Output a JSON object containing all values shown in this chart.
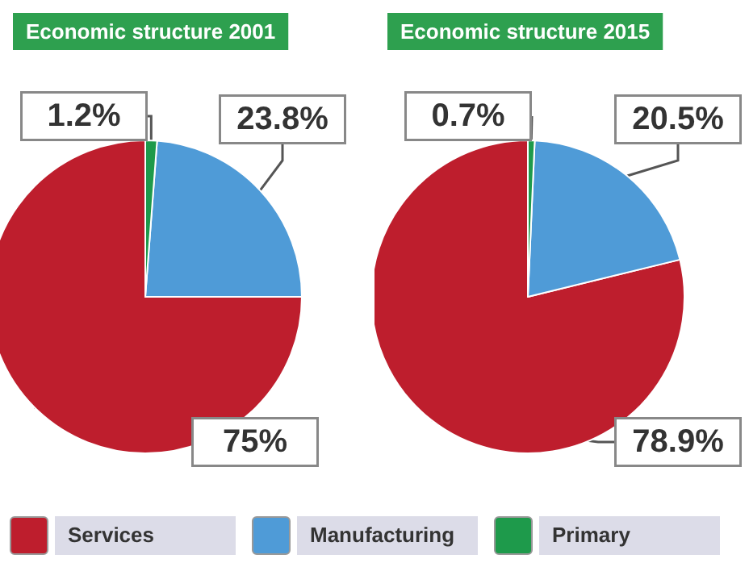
{
  "chart_data": [
    {
      "type": "pie",
      "title": "Economic structure 2001",
      "categories": [
        "Services",
        "Manufacturing",
        "Primary"
      ],
      "values": [
        75,
        23.8,
        1.2
      ],
      "value_labels": [
        "75%",
        "23.8%",
        "1.2%"
      ],
      "colors": [
        "#be1e2d",
        "#4f9bd7",
        "#1e9a4b"
      ],
      "legend": "bottom"
    },
    {
      "type": "pie",
      "title": "Economic structure 2015",
      "categories": [
        null,
        null,
        null
      ],
      "values": [
        78.9,
        20.5,
        0.7
      ],
      "value_labels": [
        "78.9%",
        "20.5%",
        "0.7%"
      ],
      "colors": [
        "#be1e2d",
        "#4f9bd7",
        "#1e9a4b"
      ]
    }
  ]
}
